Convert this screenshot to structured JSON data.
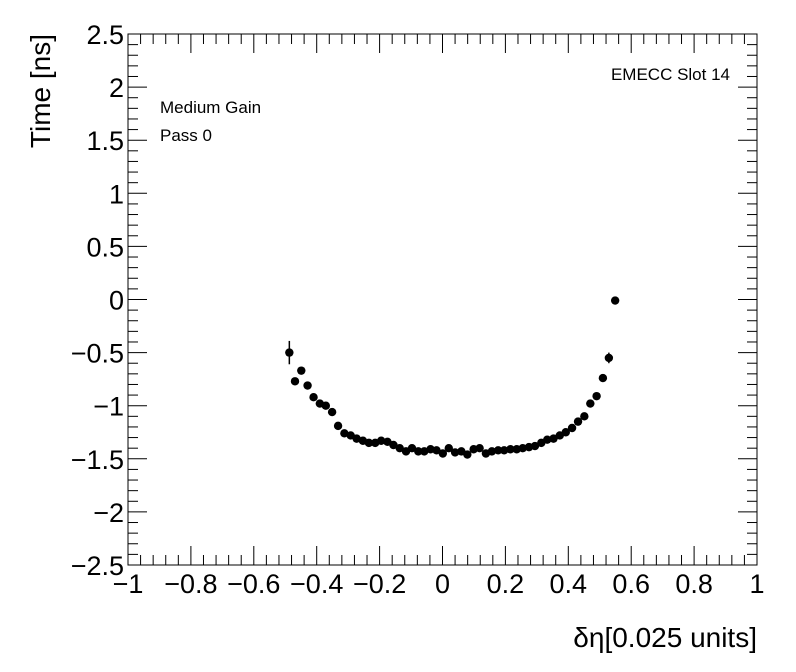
{
  "chart_data": {
    "type": "scatter",
    "title": "",
    "xlabel": "δη[0.025 units]",
    "ylabel": "Time [ns]",
    "xlim": [
      -1,
      1
    ],
    "ylim": [
      -2.5,
      2.5
    ],
    "x_ticks": [
      -1,
      -0.8,
      -0.6,
      -0.4,
      -0.2,
      0,
      0.2,
      0.4,
      0.6,
      0.8,
      1
    ],
    "x_tick_labels": [
      "−1",
      "−0.8",
      "−0.6",
      "−0.4",
      "−0.2",
      "0",
      "0.2",
      "0.4",
      "0.6",
      "0.8",
      "1"
    ],
    "y_ticks": [
      -2.5,
      -2,
      -1.5,
      -1,
      -0.5,
      0,
      0.5,
      1,
      1.5,
      2,
      2.5
    ],
    "y_tick_labels": [
      "−2.5",
      "−2",
      "−1.5",
      "−1",
      "−0.5",
      "0",
      "0.5",
      "1",
      "1.5",
      "2",
      "2.5"
    ],
    "grid": false,
    "annotations": {
      "top_right": "EMECC Slot 14",
      "line1": "Medium Gain",
      "line2": "Pass 0"
    },
    "series": [
      {
        "name": "EMECC Slot 14",
        "marker": "circle",
        "color": "#000000",
        "points": [
          {
            "x": -0.487,
            "y": -0.5,
            "err": 0.11
          },
          {
            "x": -0.469,
            "y": -0.77,
            "err": 0.03
          },
          {
            "x": -0.449,
            "y": -0.67,
            "err": 0.03
          },
          {
            "x": -0.429,
            "y": -0.81,
            "err": 0.03
          },
          {
            "x": -0.41,
            "y": -0.92,
            "err": 0.02
          },
          {
            "x": -0.39,
            "y": -0.98,
            "err": 0.02
          },
          {
            "x": -0.371,
            "y": -1.0,
            "err": 0.02
          },
          {
            "x": -0.351,
            "y": -1.06,
            "err": 0.02
          },
          {
            "x": -0.332,
            "y": -1.19,
            "err": 0.02
          },
          {
            "x": -0.312,
            "y": -1.26,
            "err": 0.02
          },
          {
            "x": -0.292,
            "y": -1.28,
            "err": 0.02
          },
          {
            "x": -0.273,
            "y": -1.31,
            "err": 0.02
          },
          {
            "x": -0.253,
            "y": -1.33,
            "err": 0.02
          },
          {
            "x": -0.234,
            "y": -1.35,
            "err": 0.02
          },
          {
            "x": -0.214,
            "y": -1.35,
            "err": 0.02
          },
          {
            "x": -0.195,
            "y": -1.33,
            "err": 0.02
          },
          {
            "x": -0.175,
            "y": -1.34,
            "err": 0.02
          },
          {
            "x": -0.156,
            "y": -1.37,
            "err": 0.02
          },
          {
            "x": -0.136,
            "y": -1.4,
            "err": 0.02
          },
          {
            "x": -0.116,
            "y": -1.43,
            "err": 0.02
          },
          {
            "x": -0.097,
            "y": -1.4,
            "err": 0.02
          },
          {
            "x": -0.077,
            "y": -1.43,
            "err": 0.02
          },
          {
            "x": -0.058,
            "y": -1.43,
            "err": 0.02
          },
          {
            "x": -0.038,
            "y": -1.41,
            "err": 0.02
          },
          {
            "x": -0.019,
            "y": -1.42,
            "err": 0.02
          },
          {
            "x": 0.001,
            "y": -1.45,
            "err": 0.02
          },
          {
            "x": 0.02,
            "y": -1.4,
            "err": 0.02
          },
          {
            "x": 0.04,
            "y": -1.44,
            "err": 0.02
          },
          {
            "x": 0.06,
            "y": -1.43,
            "err": 0.02
          },
          {
            "x": 0.079,
            "y": -1.46,
            "err": 0.02
          },
          {
            "x": 0.099,
            "y": -1.41,
            "err": 0.02
          },
          {
            "x": 0.118,
            "y": -1.4,
            "err": 0.02
          },
          {
            "x": 0.138,
            "y": -1.45,
            "err": 0.02
          },
          {
            "x": 0.157,
            "y": -1.43,
            "err": 0.02
          },
          {
            "x": 0.177,
            "y": -1.42,
            "err": 0.02
          },
          {
            "x": 0.196,
            "y": -1.42,
            "err": 0.02
          },
          {
            "x": 0.216,
            "y": -1.41,
            "err": 0.02
          },
          {
            "x": 0.236,
            "y": -1.41,
            "err": 0.02
          },
          {
            "x": 0.255,
            "y": -1.4,
            "err": 0.02
          },
          {
            "x": 0.275,
            "y": -1.39,
            "err": 0.02
          },
          {
            "x": 0.294,
            "y": -1.38,
            "err": 0.02
          },
          {
            "x": 0.314,
            "y": -1.35,
            "err": 0.02
          },
          {
            "x": 0.333,
            "y": -1.32,
            "err": 0.02
          },
          {
            "x": 0.353,
            "y": -1.31,
            "err": 0.02
          },
          {
            "x": 0.373,
            "y": -1.28,
            "err": 0.02
          },
          {
            "x": 0.392,
            "y": -1.25,
            "err": 0.02
          },
          {
            "x": 0.412,
            "y": -1.21,
            "err": 0.02
          },
          {
            "x": 0.431,
            "y": -1.15,
            "err": 0.02
          },
          {
            "x": 0.451,
            "y": -1.1,
            "err": 0.02
          },
          {
            "x": 0.47,
            "y": -0.98,
            "err": 0.02
          },
          {
            "x": 0.49,
            "y": -0.91,
            "err": 0.02
          },
          {
            "x": 0.51,
            "y": -0.74,
            "err": 0.03
          },
          {
            "x": 0.529,
            "y": -0.55,
            "err": 0.05
          },
          {
            "x": 0.549,
            "y": -0.01,
            "err": 0.02
          }
        ]
      }
    ]
  }
}
